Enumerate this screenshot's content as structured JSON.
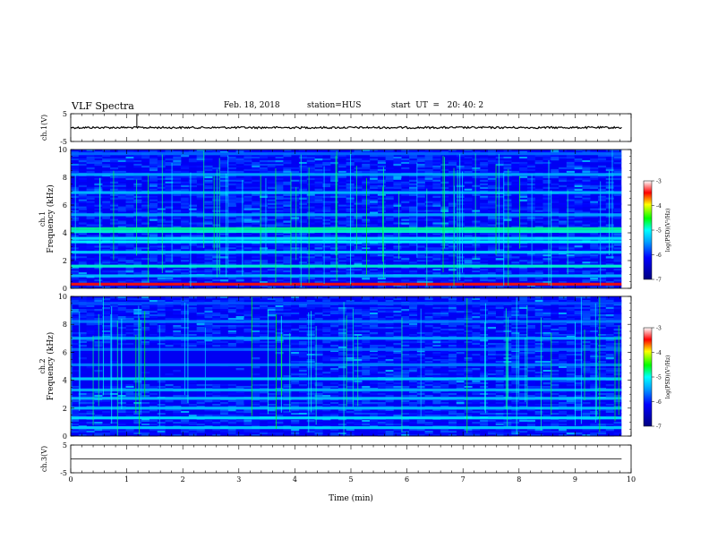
{
  "header": {
    "title": "VLF Spectra",
    "date": "Feb. 18, 2018",
    "station": "station=HUS",
    "start": "start  UT  =   20: 40: 2"
  },
  "chart_data": [
    {
      "type": "line",
      "ylabel": "ch.1(V)",
      "ylim": [
        -5,
        5
      ],
      "yticks": [
        "5",
        "-5"
      ],
      "xlim": [
        0,
        10
      ],
      "baseline": 0,
      "noise_amplitude": 0.4,
      "spikes": [
        {
          "x": 1.18,
          "y": 1.6
        }
      ],
      "extent_min": 9.83
    },
    {
      "type": "heatmap",
      "ylabel_top": "ch.1",
      "ylabel": "Frequency (kHz)",
      "ylim": [
        0,
        10
      ],
      "yticks": [
        "0",
        "2",
        "4",
        "6",
        "8",
        "10"
      ],
      "xlim": [
        0,
        10
      ],
      "extent_min": 9.83,
      "colorbar": {
        "label": "log(PSD)(V²/Hz)",
        "range": [
          -7,
          -3
        ],
        "ticks": [
          "-3",
          "-4",
          "-5",
          "-6",
          "-7"
        ]
      },
      "bands_khz": [
        {
          "f": 0.3,
          "level": -3.5
        },
        {
          "f": 0.9,
          "level": -5.3
        },
        {
          "f": 1.6,
          "level": -4.9
        },
        {
          "f": 2.6,
          "level": -5.2
        },
        {
          "f": 3.35,
          "level": -5.0
        },
        {
          "f": 3.6,
          "level": -5.1
        },
        {
          "f": 4.1,
          "level": -4.9
        },
        {
          "f": 4.3,
          "level": -4.8
        },
        {
          "f": 5.3,
          "level": -5.4
        },
        {
          "f": 6.9,
          "level": -5.3
        },
        {
          "f": 8.2,
          "level": -5.4
        },
        {
          "f": 9.7,
          "level": -5.7
        }
      ]
    },
    {
      "type": "heatmap",
      "ylabel_top": "ch.2",
      "ylabel": "Frequency (kHz)",
      "ylim": [
        0,
        10
      ],
      "yticks": [
        "0",
        "2",
        "4",
        "6",
        "8",
        "10"
      ],
      "xlim": [
        0,
        10
      ],
      "extent_min": 9.83,
      "colorbar": {
        "label": "log(PSD)(V²/Hz)",
        "range": [
          -7,
          -3
        ],
        "ticks": [
          "-3",
          "-4",
          "-5",
          "-6",
          "-7"
        ]
      },
      "bands_khz": [
        {
          "f": 0.6,
          "level": -5.2
        },
        {
          "f": 1.3,
          "level": -5.1
        },
        {
          "f": 2.0,
          "level": -5.3
        },
        {
          "f": 2.7,
          "level": -5.3
        },
        {
          "f": 3.3,
          "level": -5.4
        },
        {
          "f": 4.1,
          "level": -5.2
        },
        {
          "f": 5.1,
          "level": -5.6
        },
        {
          "f": 6.2,
          "level": -5.7
        },
        {
          "f": 7.0,
          "level": -5.4
        },
        {
          "f": 8.2,
          "level": -5.6
        },
        {
          "f": 9.5,
          "level": -5.8
        }
      ]
    },
    {
      "type": "line",
      "ylabel": "ch.3(V)",
      "ylim": [
        -5,
        5
      ],
      "yticks": [
        "5",
        "-5"
      ],
      "xlim": [
        0,
        10
      ],
      "baseline": 0,
      "extent_min": 9.83,
      "xlabel": "Time (min)",
      "xticks": [
        "0",
        "1",
        "2",
        "3",
        "4",
        "5",
        "6",
        "7",
        "8",
        "9",
        "10"
      ]
    }
  ]
}
